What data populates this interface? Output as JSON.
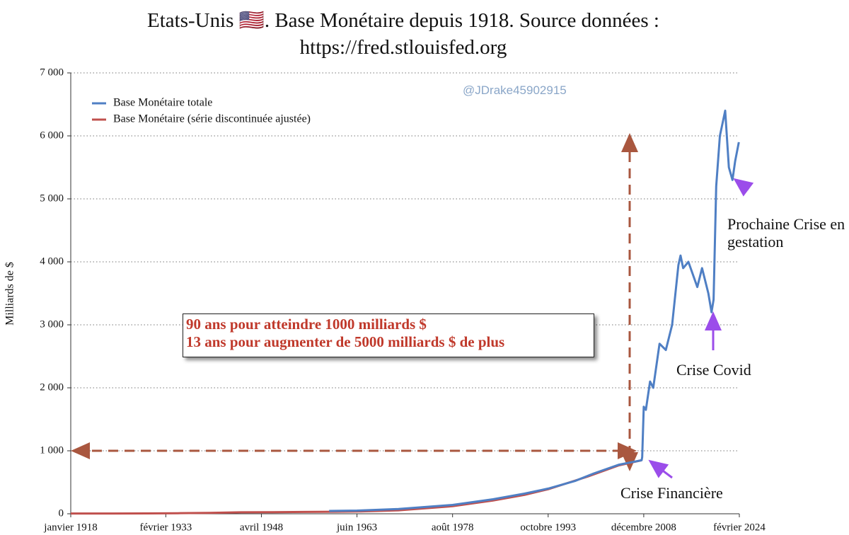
{
  "chart_data": {
    "type": "line",
    "title": "Etats-Unis 🇺🇸. Base Monétaire depuis 1918. Source données : https://fred.stlouisfed.org",
    "y_label": "Milliards de $",
    "watermark": "@JDrake45902915",
    "box_text": [
      "90 ans pour atteindre 1000 milliards $",
      "13 ans pour augmenter de 5000 milliards $ de plus"
    ],
    "annotations": [
      "Crise Financière",
      "Crise Covid",
      "Prochaine Crise en gestation"
    ],
    "xlim": [
      "1918-01",
      "2024-02"
    ],
    "xticks": [
      {
        "value": "1918-01",
        "label": "janvier 1918"
      },
      {
        "value": "1933-02",
        "label": "février 1933"
      },
      {
        "value": "1948-04",
        "label": "avril 1948"
      },
      {
        "value": "1963-06",
        "label": "juin 1963"
      },
      {
        "value": "1978-08",
        "label": "août 1978"
      },
      {
        "value": "1993-10",
        "label": "octobre 1993"
      },
      {
        "value": "2008-12",
        "label": "décembre 2008"
      },
      {
        "value": "2024-02",
        "label": "février 2024"
      }
    ],
    "ylim": [
      0,
      7000
    ],
    "yticks": [
      0,
      {
        "value": 1000,
        "label": "1 000"
      },
      {
        "value": 2000,
        "label": "2 000"
      },
      {
        "value": 3000,
        "label": "3 000"
      },
      {
        "value": 4000,
        "label": "4 000"
      },
      {
        "value": 5000,
        "label": "5 000"
      },
      {
        "value": 6000,
        "label": "6 000"
      },
      {
        "value": 7000,
        "label": "7 000"
      }
    ],
    "grid": true,
    "series": [
      {
        "name": "Base Monétaire totale",
        "color": "#4f7fc4",
        "x": [
          "1959-01",
          "1963-06",
          "1970-01",
          "1978-08",
          "1985-01",
          "1990-01",
          "1993-10",
          "1998-01",
          "2001-01",
          "2005-01",
          "2008-08",
          "2008-09",
          "2008-12",
          "2009-04",
          "2009-12",
          "2010-06",
          "2011-06",
          "2012-06",
          "2013-06",
          "2014-06",
          "2014-10",
          "2015-03",
          "2016-01",
          "2017-06",
          "2018-03",
          "2019-03",
          "2019-09",
          "2020-01",
          "2020-06",
          "2021-01",
          "2021-11",
          "2022-06",
          "2023-01",
          "2023-06",
          "2024-01"
        ],
        "values": [
          45,
          50,
          75,
          140,
          230,
          320,
          400,
          520,
          640,
          780,
          850,
          900,
          1700,
          1650,
          2100,
          2000,
          2700,
          2600,
          3000,
          3950,
          4100,
          3900,
          4000,
          3600,
          3900,
          3500,
          3200,
          3400,
          5200,
          6000,
          6400,
          5500,
          5300,
          5600,
          5900
        ]
      },
      {
        "name": "Base Monétaire (série discontinuée ajustée)",
        "color": "#c0504d",
        "x": [
          "1918-01",
          "1925-01",
          "1930-01",
          "1935-01",
          "1940-01",
          "1945-01",
          "1950-01",
          "1955-01",
          "1960-01",
          "1963-06",
          "1970-01",
          "1978-08",
          "1985-01",
          "1990-01",
          "1993-10",
          "2000-01",
          "2005-01",
          "2008-08"
        ],
        "values": [
          4,
          5,
          6,
          9,
          15,
          24,
          26,
          29,
          33,
          36,
          55,
          120,
          210,
          300,
          390,
          590,
          770,
          850
        ]
      }
    ],
    "legend": "upper left"
  }
}
